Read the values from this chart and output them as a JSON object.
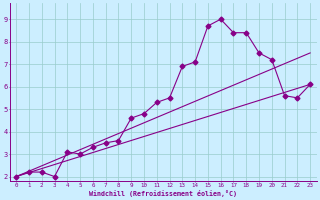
{
  "xlabel": "Windchill (Refroidissement éolien,°C)",
  "bg_color": "#cceeff",
  "line_color": "#880088",
  "grid_color": "#99cccc",
  "xlim": [
    -0.5,
    23.5
  ],
  "ylim": [
    1.8,
    9.7
  ],
  "xticks": [
    0,
    1,
    2,
    3,
    4,
    5,
    6,
    7,
    8,
    9,
    10,
    11,
    12,
    13,
    14,
    15,
    16,
    17,
    18,
    19,
    20,
    21,
    22,
    23
  ],
  "yticks": [
    2,
    3,
    4,
    5,
    6,
    7,
    8,
    9
  ],
  "line1_x": [
    0,
    1,
    2,
    3,
    4,
    5,
    6,
    7,
    8,
    9,
    10,
    11,
    12,
    13,
    14,
    15,
    16,
    17,
    18,
    19,
    20,
    21,
    22,
    23
  ],
  "line1_y": [
    2.0,
    2.2,
    2.2,
    2.0,
    3.1,
    3.0,
    3.3,
    3.5,
    3.6,
    4.6,
    4.8,
    5.3,
    5.5,
    6.9,
    7.1,
    8.7,
    9.0,
    8.4,
    8.4,
    7.5,
    7.2,
    5.6,
    5.5,
    6.1
  ],
  "line2_x": [
    0,
    23
  ],
  "line2_y": [
    2.0,
    6.1
  ],
  "line3_x": [
    0,
    23
  ],
  "line3_y": [
    2.0,
    7.5
  ],
  "marker": "D",
  "markersize": 2.5,
  "linewidth": 0.8
}
